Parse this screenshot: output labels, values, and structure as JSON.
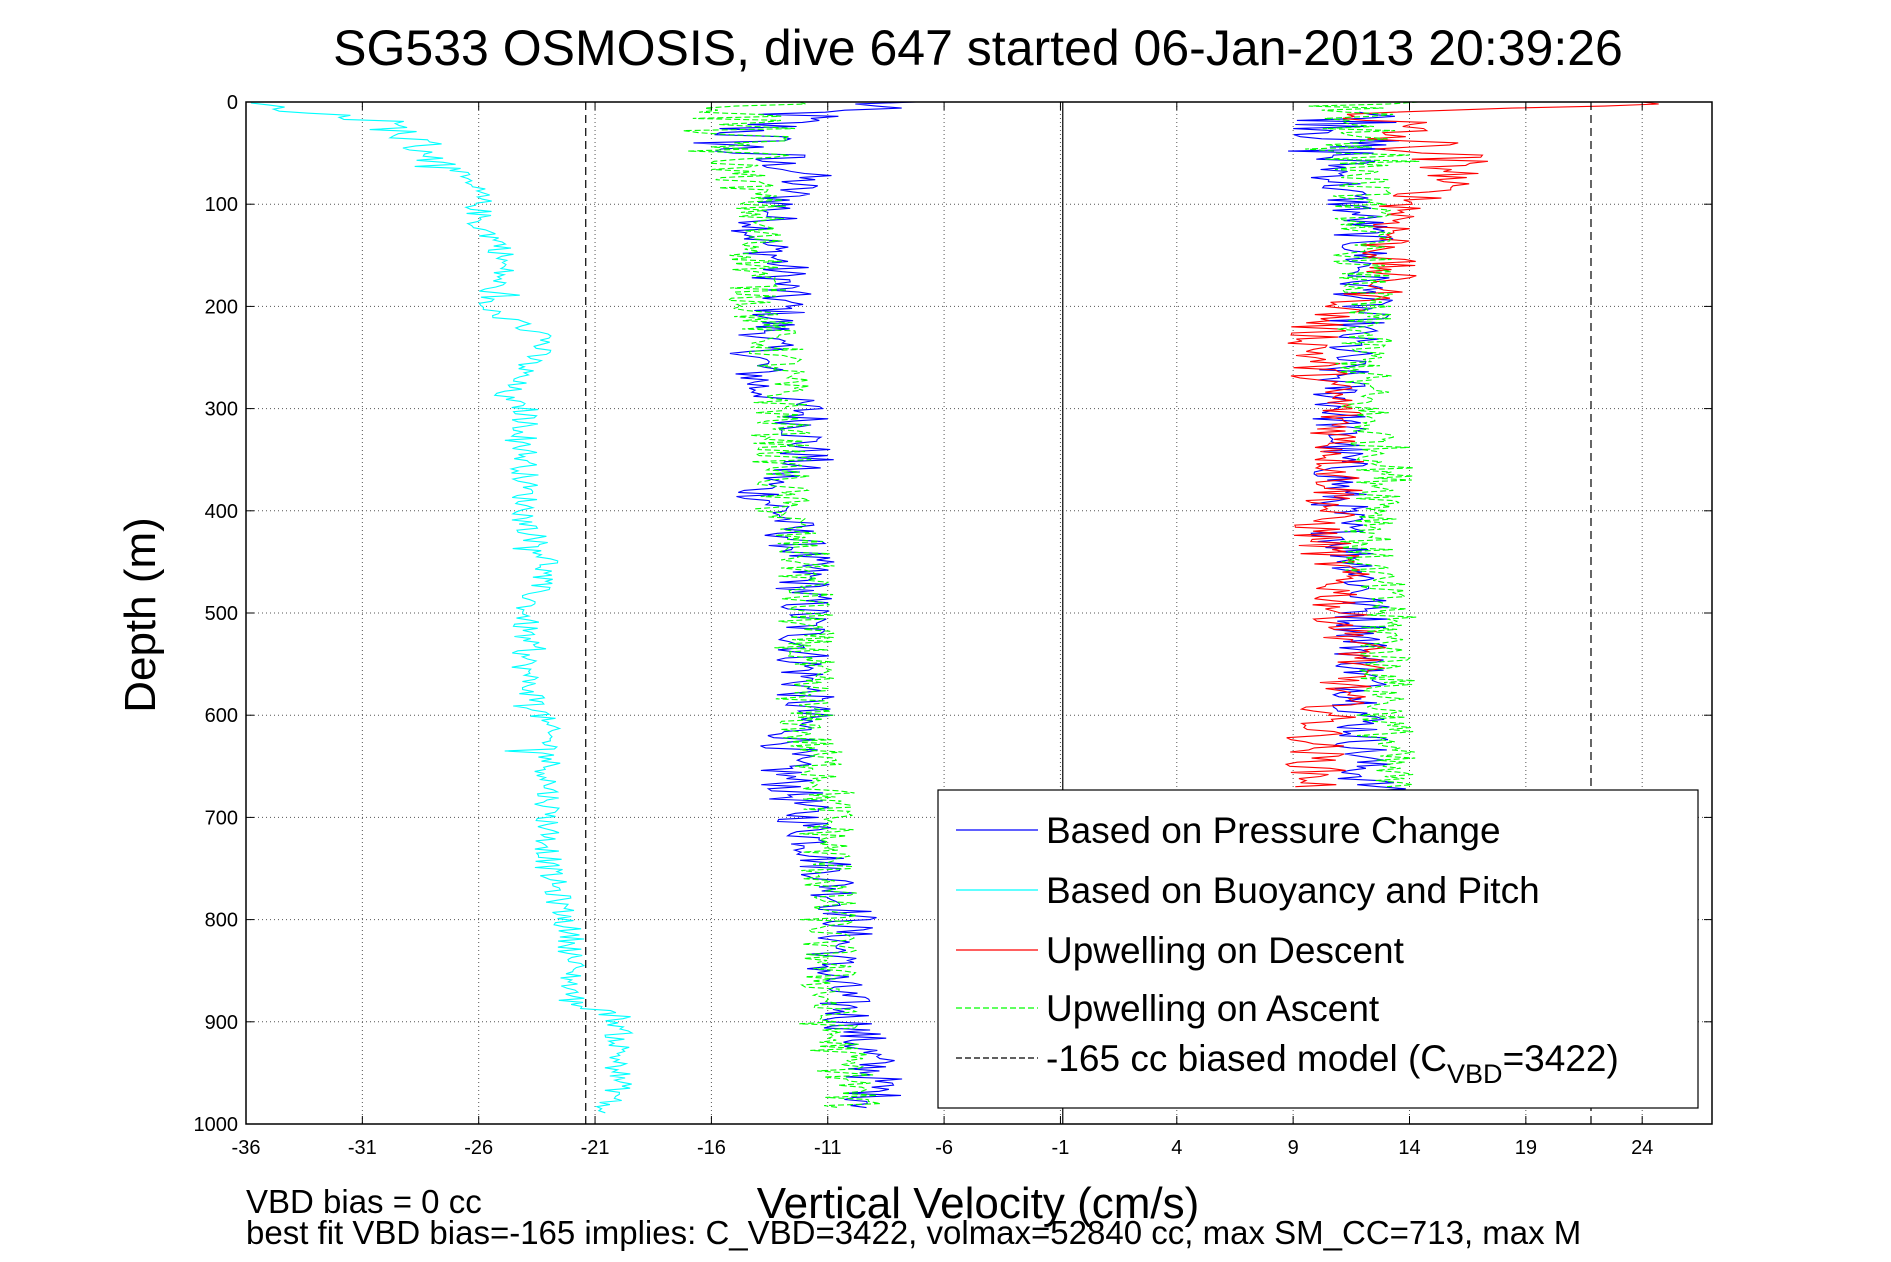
{
  "chart_data": {
    "type": "line",
    "title": "SG533 OSMOSIS, dive 647 started 06-Jan-2013 20:39:26",
    "xlabel": "Vertical Velocity (cm/s)",
    "ylabel": "Depth (m)",
    "xlim": [
      -36,
      27
    ],
    "ylim": [
      0,
      1000
    ],
    "y_reversed": true,
    "x_ticks": [
      -36,
      -31,
      -26,
      -21,
      -16,
      -11,
      -6,
      -1,
      4,
      9,
      14,
      19,
      24
    ],
    "y_ticks": [
      0,
      100,
      200,
      300,
      400,
      500,
      600,
      700,
      800,
      900,
      1000
    ],
    "grid": true,
    "legend_position": "bottom-right",
    "vertical_lines": [
      {
        "x": -21.4,
        "style": "dashed",
        "color": "#000000"
      },
      {
        "x": -0.9,
        "style": "solid",
        "color": "#000000"
      },
      {
        "x": 21.8,
        "style": "dashed",
        "color": "#000000"
      }
    ],
    "series": [
      {
        "name": "Based on Pressure Change",
        "color": "#0000ff",
        "style": "solid",
        "segments": [
          {
            "depth": [
              0,
              10,
              25,
              45,
              70,
              100,
              130,
              160,
              200,
              250,
              280,
              300,
              350,
              380,
              400,
              450,
              500,
              550,
              600,
              650,
              700,
              750,
              800,
              850,
              900,
              950,
              985
            ],
            "velocity": [
              -8,
              -12,
              -14,
              -15,
              -12,
              -13,
              -14,
              -13,
              -13,
              -14,
              -14,
              -12,
              -12,
              -14,
              -13,
              -12,
              -12,
              -12,
              -12,
              -13,
              -12,
              -11,
              -10,
              -11,
              -10,
              -9,
              -9
            ]
          },
          {
            "depth": [
              10,
              40,
              80,
              120,
              160,
              200,
              260,
              300,
              340,
              380,
              420,
              460,
              500,
              540,
              580,
              620,
              660,
              680
            ],
            "velocity": [
              12,
              11,
              11,
              12,
              12,
              12,
              11,
              11,
              11,
              11,
              11,
              12,
              12,
              12,
              12,
              12,
              12,
              13
            ]
          }
        ]
      },
      {
        "name": "Based on Buoyancy and Pitch",
        "color": "#00ffff",
        "style": "solid",
        "segments": [
          {
            "depth": [
              1,
              20,
              50,
              90,
              120,
              140,
              170,
              200,
              230,
              260,
              290,
              300,
              350,
              380,
              410,
              450,
              500,
              560,
              620,
              690,
              750,
              820,
              880,
              895,
              940,
              970,
              990
            ],
            "velocity": [
              -36,
              -30,
              -28,
              -26,
              -26,
              -25,
              -25,
              -26,
              -23,
              -24,
              -25,
              -24,
              -24,
              -24,
              -24,
              -23,
              -24,
              -24,
              -23,
              -23,
              -23,
              -22,
              -22,
              -20,
              -20,
              -20,
              -21
            ]
          }
        ]
      },
      {
        "name": "Upwelling on Descent",
        "color": "#ff0000",
        "style": "solid",
        "segments": [
          {
            "depth": [
              0,
              10,
              30,
              50,
              70,
              100,
              140,
              180,
              220,
              260,
              300,
              340,
              380,
              420,
              460,
              500,
              540,
              580,
              620,
              650,
              670
            ],
            "velocity": [
              26,
              13,
              13,
              15,
              16,
              14,
              13,
              13,
              10,
              10,
              11,
              11,
              11,
              10,
              11,
              11,
              12,
              11,
              10,
              10,
              10
            ]
          }
        ]
      },
      {
        "name": "Upwelling on Ascent",
        "color": "#00ff00",
        "style": "dashed",
        "segments": [
          {
            "depth": [
              0,
              20,
              60,
              100,
              160,
              200,
              260,
              300,
              360,
              400,
              450,
              500,
              560,
              620,
              660,
              720,
              800,
              860,
              900,
              960,
              985
            ],
            "velocity": [
              -14,
              -15,
              -15,
              -14,
              -14,
              -14,
              -13,
              -13,
              -13,
              -13,
              -12,
              -12,
              -12,
              -12,
              -11,
              -11,
              -11,
              -11,
              -11,
              -10,
              -10
            ]
          },
          {
            "depth": [
              0,
              40,
              100,
              160,
              200,
              260,
              300,
              350,
              400,
              440,
              500,
              560,
              620,
              670
            ],
            "velocity": [
              12,
              12,
              12,
              12,
              12,
              12,
              12,
              13,
              13,
              12,
              13,
              13,
              13,
              13
            ]
          }
        ]
      },
      {
        "name": "-165 cc biased model (C",
        "name_subscript": "VBD",
        "name_suffix": "=3422)",
        "color": "#000000",
        "style": "dashed",
        "segments": []
      }
    ]
  },
  "annotations": {
    "vbd_bias": "VBD bias = 0 cc",
    "best_fit": "best fit VBD bias=-165 implies: C_VBD=3422, volmax=52840 cc, max SM_CC=713, max M"
  }
}
